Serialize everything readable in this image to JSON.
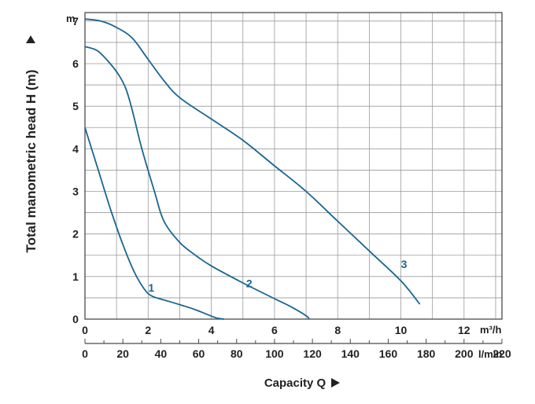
{
  "chart_data": {
    "type": "line",
    "title": "",
    "ylabel": "Total manometric head H (m)",
    "y_unit": "m",
    "xlabel": "Capacity Q",
    "x_unit_primary": "m³/h",
    "x_unit_secondary": "l/min",
    "xlim": [
      0,
      13.2
    ],
    "ylim": [
      0,
      7.2
    ],
    "x_ticks": [
      "0",
      "2",
      "4",
      "6",
      "8",
      "10",
      "12"
    ],
    "x_ticks_secondary": [
      "0",
      "20",
      "40",
      "60",
      "80",
      "100",
      "120",
      "140",
      "160",
      "180",
      "200",
      "220"
    ],
    "y_ticks": [
      "0",
      "1",
      "2",
      "3",
      "4",
      "5",
      "6",
      "7"
    ],
    "grid": true,
    "line_color": "#1a6690",
    "series": [
      {
        "name": "1",
        "x": [
          0,
          0.4,
          0.8,
          1.2,
          1.6,
          2.0,
          2.4,
          2.5,
          3.0,
          3.5,
          4.0,
          4.2,
          4.4
        ],
        "y": [
          4.5,
          3.55,
          2.6,
          1.75,
          1.05,
          0.6,
          0.47,
          0.45,
          0.34,
          0.22,
          0.07,
          0.02,
          0.0
        ]
      },
      {
        "name": "2",
        "x": [
          0,
          0.4,
          0.8,
          1.1,
          1.3,
          1.5,
          1.8,
          2.2,
          2.5,
          3.0,
          3.5,
          4.0,
          5.0,
          6.0,
          6.5,
          7.0,
          7.1
        ],
        "y": [
          6.4,
          6.3,
          6.0,
          5.7,
          5.4,
          4.9,
          4.0,
          3.0,
          2.3,
          1.8,
          1.5,
          1.25,
          0.85,
          0.48,
          0.3,
          0.08,
          0.0
        ]
      },
      {
        "name": "3",
        "x": [
          0,
          0.5,
          1.0,
          1.5,
          2.0,
          2.5,
          3.0,
          4.0,
          5.0,
          6.0,
          7.0,
          8.0,
          9.0,
          10.0,
          10.6
        ],
        "y": [
          7.05,
          7.0,
          6.85,
          6.6,
          6.1,
          5.6,
          5.2,
          4.7,
          4.2,
          3.6,
          3.0,
          2.3,
          1.6,
          0.9,
          0.35
        ]
      }
    ],
    "curve_label_positions_x": [
      2.1,
      5.2,
      10.1
    ],
    "curve_label_positions_y": [
      0.65,
      0.75,
      1.2
    ]
  }
}
